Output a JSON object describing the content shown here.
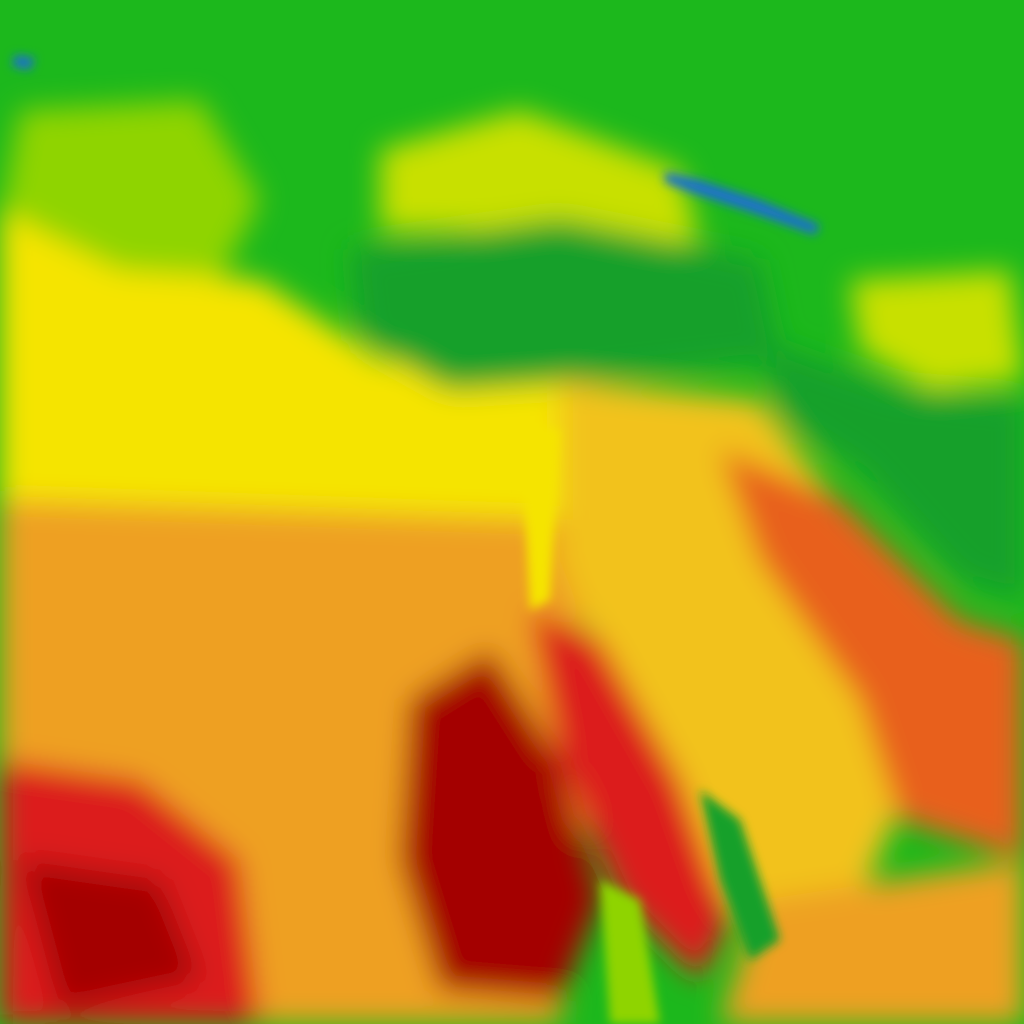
{
  "map": {
    "type": "temperature-heatmap",
    "color_scale": {
      "cold": "#1a6fd0",
      "cool": "#14a02a",
      "mild": "#1cb81c",
      "warm_green": "#8fd400",
      "yellow_green": "#c8e000",
      "yellow": "#f5e400",
      "yellow_orange": "#f2c21a",
      "orange": "#eea020",
      "orange_red": "#e8601c",
      "red": "#dc1c1c",
      "dark_red": "#a40000"
    }
  }
}
